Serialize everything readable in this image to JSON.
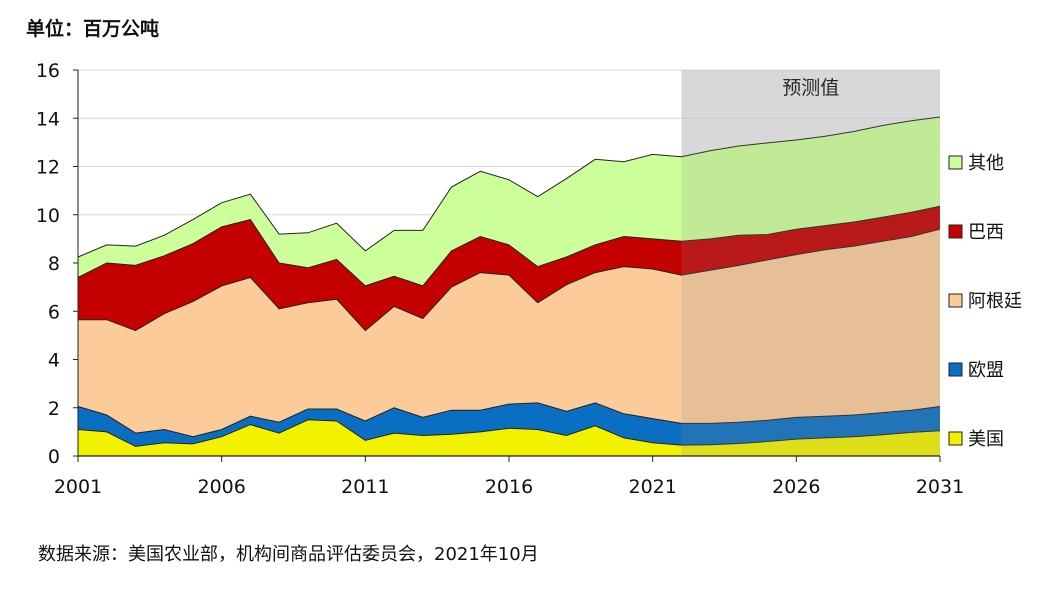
{
  "header": {
    "unit": "单位：百万公吨"
  },
  "footer": {
    "source": "数据来源：美国农业部，机构间商品评估委员会，2021年10月"
  },
  "chart_data": {
    "type": "area",
    "stacked": true,
    "x": [
      2001,
      2002,
      2003,
      2004,
      2005,
      2006,
      2007,
      2008,
      2009,
      2010,
      2011,
      2012,
      2013,
      2014,
      2015,
      2016,
      2017,
      2018,
      2019,
      2020,
      2021,
      2022,
      2023,
      2024,
      2025,
      2026,
      2027,
      2028,
      2029,
      2030,
      2031
    ],
    "xlim": [
      2001,
      2031
    ],
    "ylim": [
      0,
      16
    ],
    "x_ticks": [
      "2001",
      "2006",
      "2011",
      "2016",
      "2021",
      "2026",
      "2031"
    ],
    "y_ticks": [
      "0",
      "2",
      "4",
      "6",
      "8",
      "10",
      "12",
      "14",
      "16"
    ],
    "grid": "horizontal",
    "legend_position": "right",
    "forecast": {
      "label": "预测值",
      "from": 2022,
      "to": 2031
    },
    "series": [
      {
        "name": "美国",
        "color": "#f2f200",
        "values": [
          1.1,
          1.0,
          0.4,
          0.55,
          0.5,
          0.8,
          1.3,
          0.95,
          1.5,
          1.45,
          0.65,
          0.95,
          0.85,
          0.9,
          1.0,
          1.15,
          1.1,
          0.85,
          1.25,
          0.75,
          0.55,
          0.45,
          0.47,
          0.52,
          0.6,
          0.7,
          0.75,
          0.8,
          0.88,
          0.98,
          1.05
        ]
      },
      {
        "name": "欧盟",
        "color": "#0a6fc2",
        "values": [
          0.95,
          0.7,
          0.55,
          0.55,
          0.3,
          0.3,
          0.35,
          0.45,
          0.45,
          0.5,
          0.8,
          1.05,
          0.75,
          1.0,
          0.9,
          1.0,
          1.1,
          1.0,
          0.95,
          1.0,
          1.0,
          0.9,
          0.88,
          0.88,
          0.88,
          0.9,
          0.9,
          0.9,
          0.92,
          0.92,
          1.0
        ]
      },
      {
        "name": "阿根廷",
        "color": "#fccb9a",
        "values": [
          3.6,
          3.95,
          4.25,
          4.8,
          5.6,
          5.95,
          5.75,
          4.7,
          4.4,
          4.55,
          3.75,
          4.2,
          4.1,
          5.1,
          5.7,
          5.35,
          4.15,
          5.25,
          5.4,
          6.1,
          6.2,
          6.15,
          6.35,
          6.5,
          6.65,
          6.75,
          6.9,
          7.0,
          7.1,
          7.2,
          7.35
        ]
      },
      {
        "name": "巴西",
        "color": "#c40000",
        "values": [
          1.75,
          2.35,
          2.7,
          2.4,
          2.4,
          2.45,
          2.4,
          1.9,
          1.45,
          1.65,
          1.85,
          1.25,
          1.35,
          1.5,
          1.5,
          1.25,
          1.5,
          1.15,
          1.15,
          1.25,
          1.25,
          1.4,
          1.3,
          1.25,
          1.05,
          1.05,
          1.0,
          1.0,
          1.0,
          1.0,
          0.95
        ]
      },
      {
        "name": "其他",
        "color": "#ccff99",
        "values": [
          0.85,
          0.75,
          0.8,
          0.85,
          1.0,
          1.0,
          1.05,
          1.2,
          1.45,
          1.5,
          1.45,
          1.9,
          2.3,
          2.65,
          2.7,
          2.7,
          2.9,
          3.25,
          3.55,
          3.1,
          3.5,
          3.5,
          3.65,
          3.7,
          3.8,
          3.7,
          3.7,
          3.75,
          3.8,
          3.8,
          3.7
        ]
      }
    ]
  }
}
